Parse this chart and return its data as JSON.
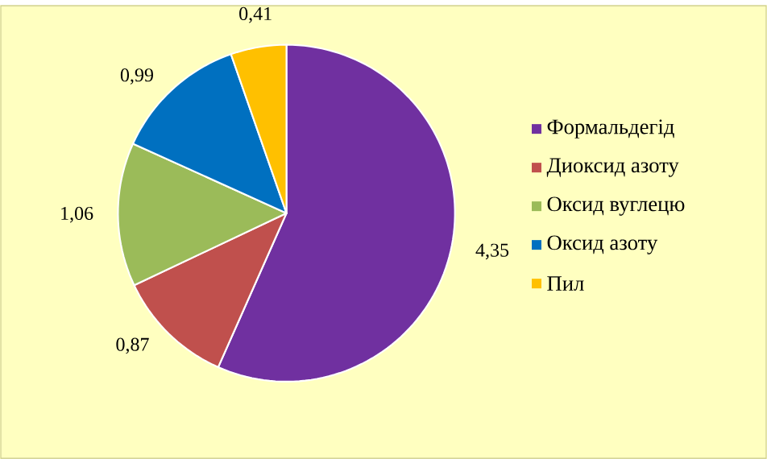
{
  "chart_data": {
    "type": "pie",
    "categories": [
      "Формальдегід",
      "Диоксид азоту",
      "Оксид вуглецю",
      "Оксид азоту",
      "Пил"
    ],
    "values": [
      4.35,
      0.87,
      1.06,
      0.99,
      0.41
    ],
    "value_labels": [
      "4,35",
      "0,87",
      "1,06",
      "0,99",
      "0,41"
    ],
    "colors": [
      "#7030a0",
      "#c0504d",
      "#9bbb59",
      "#0070c0",
      "#ffc000"
    ],
    "legend": "right"
  }
}
